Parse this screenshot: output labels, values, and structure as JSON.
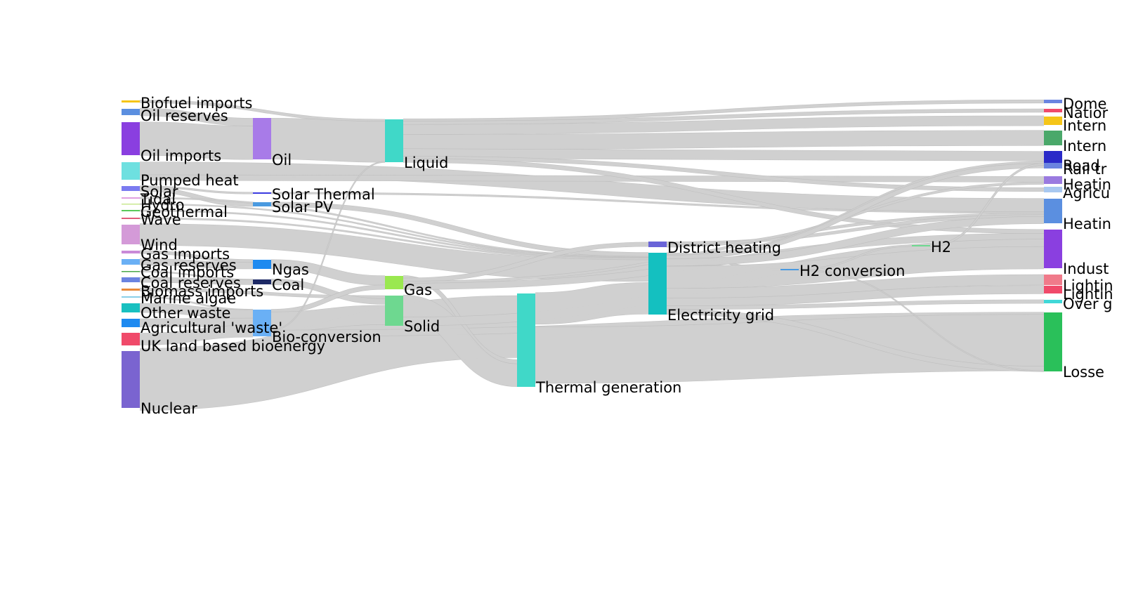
{
  "nodes": [
    {
      "id": "biofuel_imports",
      "label": "Biofuel imports",
      "color": "#f5c518"
    },
    {
      "id": "oil_reserves",
      "label": "Oil reserves",
      "color": "#5b8fe0"
    },
    {
      "id": "oil_imports",
      "label": "Oil imports",
      "color": "#8a3fe0"
    },
    {
      "id": "pumped_heat",
      "label": "Pumped heat",
      "color": "#6ee0e0"
    },
    {
      "id": "solar",
      "label": "Solar",
      "color": "#7b7bf0"
    },
    {
      "id": "tidal",
      "label": "Tidal",
      "color": "#e0a0e0"
    },
    {
      "id": "hydro",
      "label": "Hydro",
      "color": "#c8e890"
    },
    {
      "id": "geothermal",
      "label": "Geothermal",
      "color": "#5ac85a"
    },
    {
      "id": "wave",
      "label": "Wave",
      "color": "#e05a7a"
    },
    {
      "id": "wind",
      "label": "Wind",
      "color": "#d49ad8"
    },
    {
      "id": "gas_imports",
      "label": "Gas imports",
      "color": "#c98ad8"
    },
    {
      "id": "gas_reserves",
      "label": "Gas reserves",
      "color": "#6ab0f5"
    },
    {
      "id": "coal_imports",
      "label": "Coal imports",
      "color": "#4aa84a"
    },
    {
      "id": "coal_reserves",
      "label": "Coal reserves",
      "color": "#6a84e0"
    },
    {
      "id": "biomass_imports",
      "label": "Biomass imports",
      "color": "#e88a3a"
    },
    {
      "id": "marine_algae",
      "label": "Marine algae",
      "color": "#8ad0e8"
    },
    {
      "id": "other_waste",
      "label": "Other waste",
      "color": "#18c0c0"
    },
    {
      "id": "agri_waste",
      "label": "Agricultural 'waste'",
      "color": "#1e8af0"
    },
    {
      "id": "uk_land",
      "label": "UK land based bioenergy",
      "color": "#f04a6a"
    },
    {
      "id": "nuclear",
      "label": "Nuclear",
      "color": "#7a64d0"
    },
    {
      "id": "oil",
      "label": "Oil",
      "color": "#a87be8"
    },
    {
      "id": "solar_thermal",
      "label": "Solar Thermal",
      "color": "#3a3ae0"
    },
    {
      "id": "solar_pv",
      "label": "Solar PV",
      "color": "#4a9ae0"
    },
    {
      "id": "ngas",
      "label": "Ngas",
      "color": "#1e8af0"
    },
    {
      "id": "coal",
      "label": "Coal",
      "color": "#1e2a66"
    },
    {
      "id": "bio_conversion",
      "label": "Bio-conversion",
      "color": "#6ab0f5"
    },
    {
      "id": "liquid",
      "label": "Liquid",
      "color": "#40d8c8"
    },
    {
      "id": "gas",
      "label": "Gas",
      "color": "#9ae850"
    },
    {
      "id": "solid",
      "label": "Solid",
      "color": "#6ed890"
    },
    {
      "id": "thermal_generation",
      "label": "Thermal generation",
      "color": "#40d8c8"
    },
    {
      "id": "district_heating",
      "label": "District heating",
      "color": "#6a64d8"
    },
    {
      "id": "electricity_grid",
      "label": "Electricity grid",
      "color": "#14c0c0"
    },
    {
      "id": "h2_conversion",
      "label": "H2 conversion",
      "color": "#4a9ae0"
    },
    {
      "id": "h2",
      "label": "H2",
      "color": "#6ed890"
    },
    {
      "id": "domestic_aviation",
      "label": "Dome",
      "color": "#6a84e0"
    },
    {
      "id": "national_navigation",
      "label": "Natior",
      "color": "#f04a6a"
    },
    {
      "id": "international_shipping",
      "label": "Intern",
      "color": "#f5c518"
    },
    {
      "id": "international_aviation",
      "label": "Intern",
      "color": "#4aa86a"
    },
    {
      "id": "road_transport",
      "label": "Road",
      "color": "#2a2ac8"
    },
    {
      "id": "rail_transport",
      "label": "Rail tr",
      "color": "#6a84e0"
    },
    {
      "id": "heating_commercial",
      "label": "Heatin",
      "color": "#9a7ae0"
    },
    {
      "id": "agriculture",
      "label": "Agricu",
      "color": "#a8c8f0"
    },
    {
      "id": "heating_homes",
      "label": "Heatin",
      "color": "#5b8fe0"
    },
    {
      "id": "industry",
      "label": "Indust",
      "color": "#8a3fe0"
    },
    {
      "id": "lighting_homes",
      "label": "Lightin",
      "color": "#f07a8a"
    },
    {
      "id": "lighting_commercial",
      "label": "Lightin",
      "color": "#f04a6a"
    },
    {
      "id": "over_generation",
      "label": "Over g",
      "color": "#40d8d8"
    },
    {
      "id": "losses",
      "label": "Losse",
      "color": "#2ac05a"
    }
  ],
  "links": [
    {
      "source": "biofuel_imports",
      "target": "liquid",
      "value": 0.5
    },
    {
      "source": "oil_reserves",
      "target": "oil",
      "value": 1.5
    },
    {
      "source": "oil_imports",
      "target": "oil",
      "value": 6
    },
    {
      "source": "oil",
      "target": "liquid",
      "value": 7.5
    },
    {
      "source": "pumped_heat",
      "target": "heating_homes",
      "value": 2.5
    },
    {
      "source": "pumped_heat",
      "target": "heating_commercial",
      "value": 0.8
    },
    {
      "source": "solar",
      "target": "solar_thermal",
      "value": 0.2
    },
    {
      "source": "solar",
      "target": "solar_pv",
      "value": 0.6
    },
    {
      "source": "solar_thermal",
      "target": "heating_homes",
      "value": 0.2
    },
    {
      "source": "solar_pv",
      "target": "electricity_grid",
      "value": 0.6
    },
    {
      "source": "tidal",
      "target": "electricity_grid",
      "value": 0.1
    },
    {
      "source": "hydro",
      "target": "electricity_grid",
      "value": 0.1
    },
    {
      "source": "geothermal",
      "target": "electricity_grid",
      "value": 0.1
    },
    {
      "source": "wave",
      "target": "electricity_grid",
      "value": 0.1
    },
    {
      "source": "wind",
      "target": "electricity_grid",
      "value": 3.5
    },
    {
      "source": "gas_imports",
      "target": "ngas",
      "value": 0.5
    },
    {
      "source": "gas_reserves",
      "target": "ngas",
      "value": 1.2
    },
    {
      "source": "coal_imports",
      "target": "coal",
      "value": 0.1
    },
    {
      "source": "coal_reserves",
      "target": "coal",
      "value": 0.8
    },
    {
      "source": "biomass_imports",
      "target": "solid",
      "value": 0.5
    },
    {
      "source": "marine_algae",
      "target": "bio_conversion",
      "value": 0.1
    },
    {
      "source": "other_waste",
      "target": "bio_conversion",
      "value": 1.8
    },
    {
      "source": "agri_waste",
      "target": "bio_conversion",
      "value": 1.6
    },
    {
      "source": "uk_land",
      "target": "bio_conversion",
      "value": 2.2
    },
    {
      "source": "nuclear",
      "target": "thermal_generation",
      "value": 10
    },
    {
      "source": "ngas",
      "target": "gas",
      "value": 1.7
    },
    {
      "source": "coal",
      "target": "solid",
      "value": 0.9
    },
    {
      "source": "bio_conversion",
      "target": "gas",
      "value": 0.8
    },
    {
      "source": "bio_conversion",
      "target": "solid",
      "value": 3.5
    },
    {
      "source": "bio_conversion",
      "target": "liquid",
      "value": 0.1
    },
    {
      "source": "bio_conversion",
      "target": "losses",
      "value": 1.3
    },
    {
      "source": "liquid",
      "target": "domestic_aviation",
      "value": 0.4
    },
    {
      "source": "liquid",
      "target": "national_navigation",
      "value": 0.5
    },
    {
      "source": "liquid",
      "target": "international_shipping",
      "value": 2
    },
    {
      "source": "liquid",
      "target": "international_aviation",
      "value": 2.8
    },
    {
      "source": "liquid",
      "target": "road_transport",
      "value": 1.5
    },
    {
      "source": "liquid",
      "target": "agriculture",
      "value": 0.2
    },
    {
      "source": "liquid",
      "target": "industry",
      "value": 0.7
    },
    {
      "source": "gas",
      "target": "thermal_generation",
      "value": 0.6
    },
    {
      "source": "gas",
      "target": "district_heating",
      "value": 0.4
    },
    {
      "source": "gas",
      "target": "heating_homes",
      "value": 0.4
    },
    {
      "source": "gas",
      "target": "industry",
      "value": 1.1
    },
    {
      "source": "solid",
      "target": "thermal_generation",
      "value": 3.5
    },
    {
      "source": "solid",
      "target": "industry",
      "value": 1.4
    },
    {
      "source": "thermal_generation",
      "target": "electricity_grid",
      "value": 5
    },
    {
      "source": "thermal_generation",
      "target": "losses",
      "value": 10.6
    },
    {
      "source": "district_heating",
      "target": "heating_homes",
      "value": 0.3
    },
    {
      "source": "district_heating",
      "target": "heating_commercial",
      "value": 0.2
    },
    {
      "source": "electricity_grid",
      "target": "h2_conversion",
      "value": 0.3
    },
    {
      "source": "electricity_grid",
      "target": "road_transport",
      "value": 0.3
    },
    {
      "source": "electricity_grid",
      "target": "rail_transport",
      "value": 0.4
    },
    {
      "source": "electricity_grid",
      "target": "heating_homes",
      "value": 1.2
    },
    {
      "source": "electricity_grid",
      "target": "industry",
      "value": 3.8
    },
    {
      "source": "electricity_grid",
      "target": "lighting_homes",
      "value": 1.6
    },
    {
      "source": "electricity_grid",
      "target": "lighting_commercial",
      "value": 1.3
    },
    {
      "source": "electricity_grid",
      "target": "over_generation",
      "value": 0.5
    },
    {
      "source": "electricity_grid",
      "target": "losses",
      "value": 0.9
    },
    {
      "source": "h2_conversion",
      "target": "h2",
      "value": 0.2
    },
    {
      "source": "h2_conversion",
      "target": "losses",
      "value": 0.1
    },
    {
      "source": "h2",
      "target": "road_transport",
      "value": 0.2
    }
  ]
}
